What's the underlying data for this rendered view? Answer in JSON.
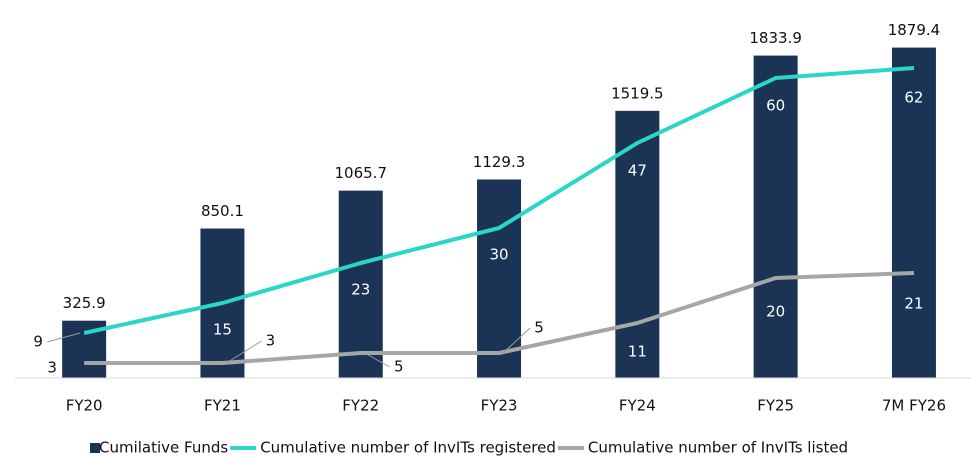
{
  "chart_data": {
    "type": "bar",
    "categories": [
      "FY20",
      "FY21",
      "FY22",
      "FY23",
      "FY24",
      "FY25",
      "7M FY26"
    ],
    "series": [
      {
        "name": "Cumilative Funds",
        "type": "bar",
        "color": "#1b3455",
        "values": [
          325.9,
          850.1,
          1065.7,
          1129.3,
          1519.5,
          1833.9,
          1879.4
        ]
      },
      {
        "name": "Cumulative number of InvITs registered",
        "type": "line",
        "axis": "y2",
        "color": "#2ad6c8",
        "values": [
          9,
          15,
          23,
          30,
          47,
          60,
          62
        ]
      },
      {
        "name": "Cumulative number of InvITs listed",
        "type": "line",
        "axis": "y2",
        "color": "#a6a6a6",
        "values": [
          3,
          3,
          5,
          5,
          11,
          20,
          21
        ]
      }
    ],
    "ylim": [
      0,
      2150
    ],
    "y2lim": [
      0,
      75.6
    ],
    "legend": "bottom"
  }
}
